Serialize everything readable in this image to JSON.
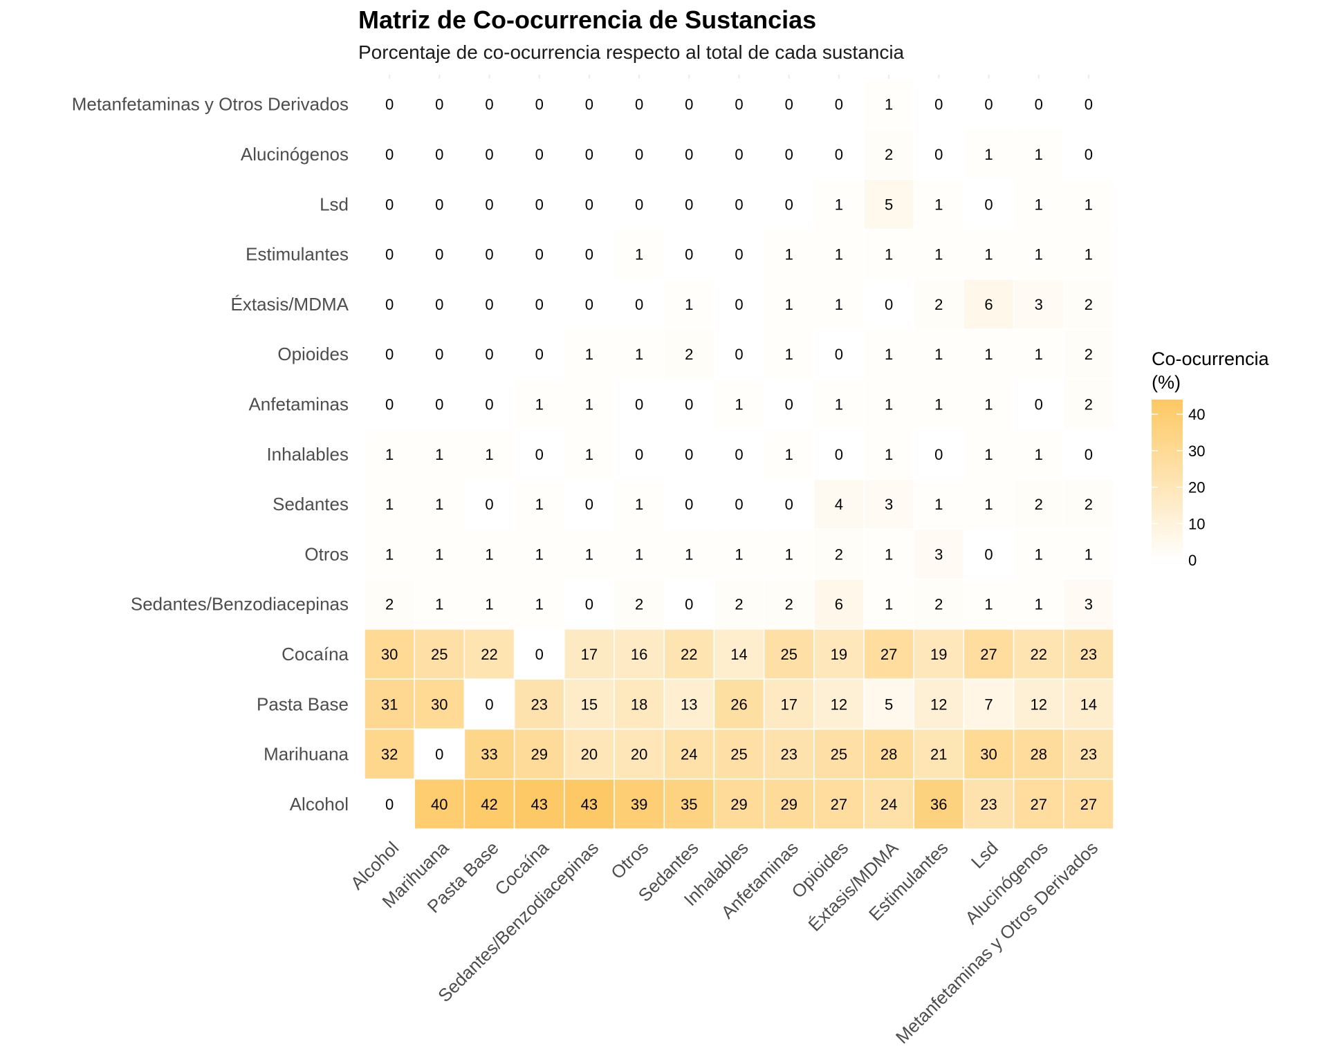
{
  "chart_data": {
    "type": "heatmap",
    "title": "Matriz de Co-ocurrencia de Sustancias",
    "subtitle": "Porcentaje de co-ocurrencia respecto al total de cada sustancia",
    "x_categories": [
      "Alcohol",
      "Marihuana",
      "Pasta Base",
      "Cocaína",
      "Sedantes/Benzodiacepinas",
      "Otros",
      "Sedantes",
      "Inhalables",
      "Anfetaminas",
      "Opioides",
      "Éxtasis/MDMA",
      "Estimulantes",
      "Lsd",
      "Alucinógenos",
      "Metanfetaminas y Otros Derivados"
    ],
    "y_categories": [
      "Alcohol",
      "Marihuana",
      "Pasta Base",
      "Cocaína",
      "Sedantes/Benzodiacepinas",
      "Otros",
      "Sedantes",
      "Inhalables",
      "Anfetaminas",
      "Opioides",
      "Éxtasis/MDMA",
      "Estimulantes",
      "Lsd",
      "Alucinógenos",
      "Metanfetaminas y Otros Derivados"
    ],
    "values": [
      [
        0,
        40,
        42,
        43,
        43,
        39,
        35,
        29,
        29,
        27,
        24,
        36,
        23,
        27,
        27
      ],
      [
        32,
        0,
        33,
        29,
        20,
        20,
        24,
        25,
        23,
        25,
        28,
        21,
        30,
        28,
        23
      ],
      [
        31,
        30,
        0,
        23,
        15,
        18,
        13,
        26,
        17,
        12,
        5,
        12,
        7,
        12,
        14
      ],
      [
        30,
        25,
        22,
        0,
        17,
        16,
        22,
        14,
        25,
        19,
        27,
        19,
        27,
        22,
        23
      ],
      [
        2,
        1,
        1,
        1,
        0,
        2,
        0,
        2,
        2,
        6,
        1,
        2,
        1,
        1,
        3
      ],
      [
        1,
        1,
        1,
        1,
        1,
        1,
        1,
        1,
        1,
        2,
        1,
        3,
        0,
        1,
        1
      ],
      [
        1,
        1,
        0,
        1,
        0,
        1,
        0,
        0,
        0,
        4,
        3,
        1,
        1,
        2,
        2
      ],
      [
        1,
        1,
        1,
        0,
        1,
        0,
        0,
        0,
        1,
        0,
        1,
        0,
        1,
        1,
        0
      ],
      [
        0,
        0,
        0,
        1,
        1,
        0,
        0,
        1,
        0,
        1,
        1,
        1,
        1,
        0,
        2
      ],
      [
        0,
        0,
        0,
        0,
        1,
        1,
        2,
        0,
        1,
        0,
        1,
        1,
        1,
        1,
        2
      ],
      [
        0,
        0,
        0,
        0,
        0,
        0,
        1,
        0,
        1,
        1,
        0,
        2,
        6,
        3,
        2
      ],
      [
        0,
        0,
        0,
        0,
        0,
        1,
        0,
        0,
        1,
        1,
        1,
        1,
        1,
        1,
        1
      ],
      [
        0,
        0,
        0,
        0,
        0,
        0,
        0,
        0,
        0,
        1,
        5,
        1,
        0,
        1,
        1
      ],
      [
        0,
        0,
        0,
        0,
        0,
        0,
        0,
        0,
        0,
        0,
        2,
        0,
        1,
        1,
        0
      ],
      [
        0,
        0,
        0,
        0,
        0,
        0,
        0,
        0,
        0,
        0,
        1,
        0,
        0,
        0,
        0
      ]
    ],
    "legend": {
      "title_line1": "Co-ocurrencia",
      "title_line2": "(%)",
      "ticks": [
        0,
        10,
        20,
        30,
        40
      ],
      "range": [
        0,
        44
      ],
      "low_color": "#ffffff",
      "high_color": "#fdc862",
      "placement": "right"
    },
    "grid": false
  }
}
